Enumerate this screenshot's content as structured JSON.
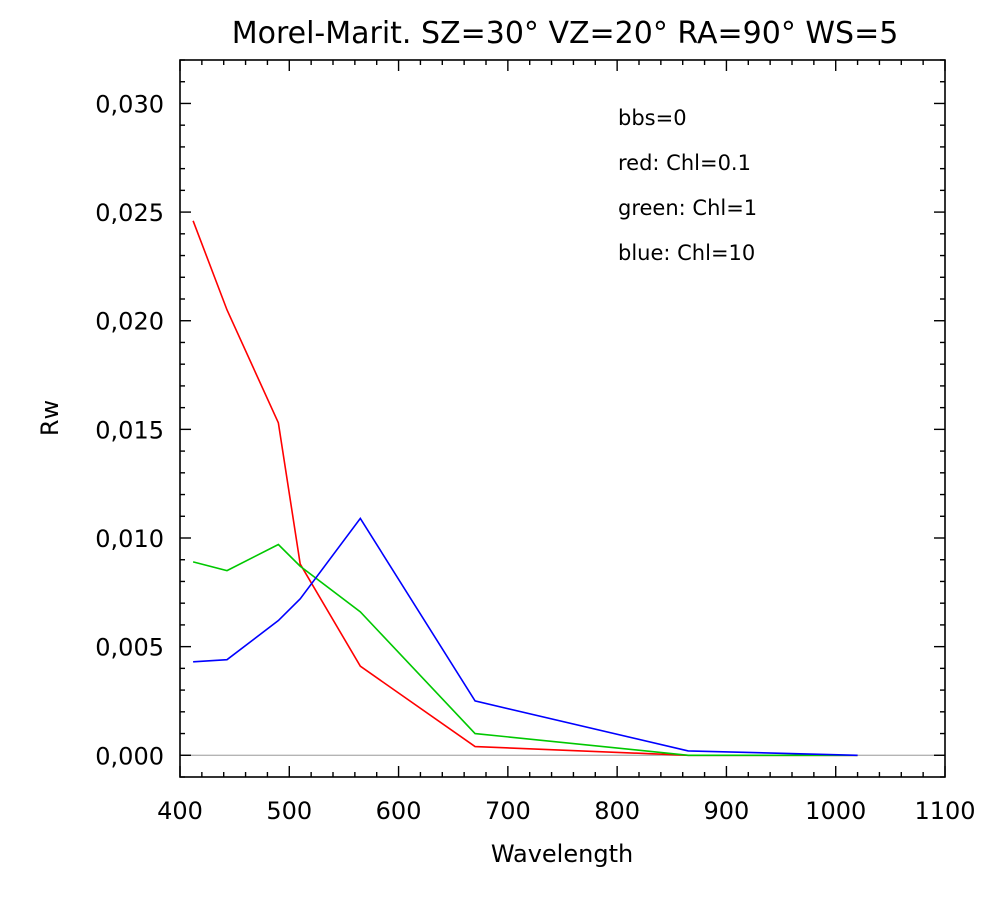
{
  "chart_data": {
    "type": "line",
    "title": "Morel-Marit. SZ=30° VZ=20° RA=90° WS=5",
    "xlabel": "Wavelength",
    "ylabel": "Rw",
    "xlim": [
      400,
      1100
    ],
    "ylim": [
      -0.001,
      0.032
    ],
    "x_ticks": [
      {
        "value": 400,
        "label": "400"
      },
      {
        "value": 500,
        "label": "500"
      },
      {
        "value": 600,
        "label": "600"
      },
      {
        "value": 700,
        "label": "700"
      },
      {
        "value": 800,
        "label": "800"
      },
      {
        "value": 900,
        "label": "900"
      },
      {
        "value": 1000,
        "label": "1000"
      },
      {
        "value": 1100,
        "label": "1100"
      }
    ],
    "y_ticks": [
      {
        "value": 0.0,
        "label": "0,000"
      },
      {
        "value": 0.005,
        "label": "0,005"
      },
      {
        "value": 0.01,
        "label": "0,010"
      },
      {
        "value": 0.015,
        "label": "0,015"
      },
      {
        "value": 0.02,
        "label": "0,020"
      },
      {
        "value": 0.025,
        "label": "0,025"
      },
      {
        "value": 0.03,
        "label": "0,030"
      }
    ],
    "x_minor_step": 20,
    "y_minor_step": 0.001,
    "grid": false,
    "zero_line": {
      "value": 0.0,
      "color": "#b4b4b4"
    },
    "annotations": [
      "bbs=0",
      "red: Chl=0.1",
      "green: Chl=1",
      "blue: Chl=10"
    ],
    "series": [
      {
        "color": "#ff0000",
        "x": [
          412,
          443,
          490,
          510,
          565,
          670,
          865,
          1020
        ],
        "y": [
          0.0246,
          0.0205,
          0.0153,
          0.0088,
          0.0041,
          0.0004,
          0.0,
          0.0
        ]
      },
      {
        "color": "#00c800",
        "x": [
          412,
          443,
          490,
          510,
          565,
          670,
          865,
          1020
        ],
        "y": [
          0.0089,
          0.0085,
          0.0097,
          0.0087,
          0.0066,
          0.001,
          0.0,
          0.0
        ]
      },
      {
        "color": "#0000ff",
        "x": [
          412,
          443,
          490,
          510,
          565,
          670,
          865,
          1020
        ],
        "y": [
          0.0043,
          0.0044,
          0.0062,
          0.0072,
          0.0109,
          0.0025,
          0.0002,
          0.0
        ]
      }
    ]
  }
}
